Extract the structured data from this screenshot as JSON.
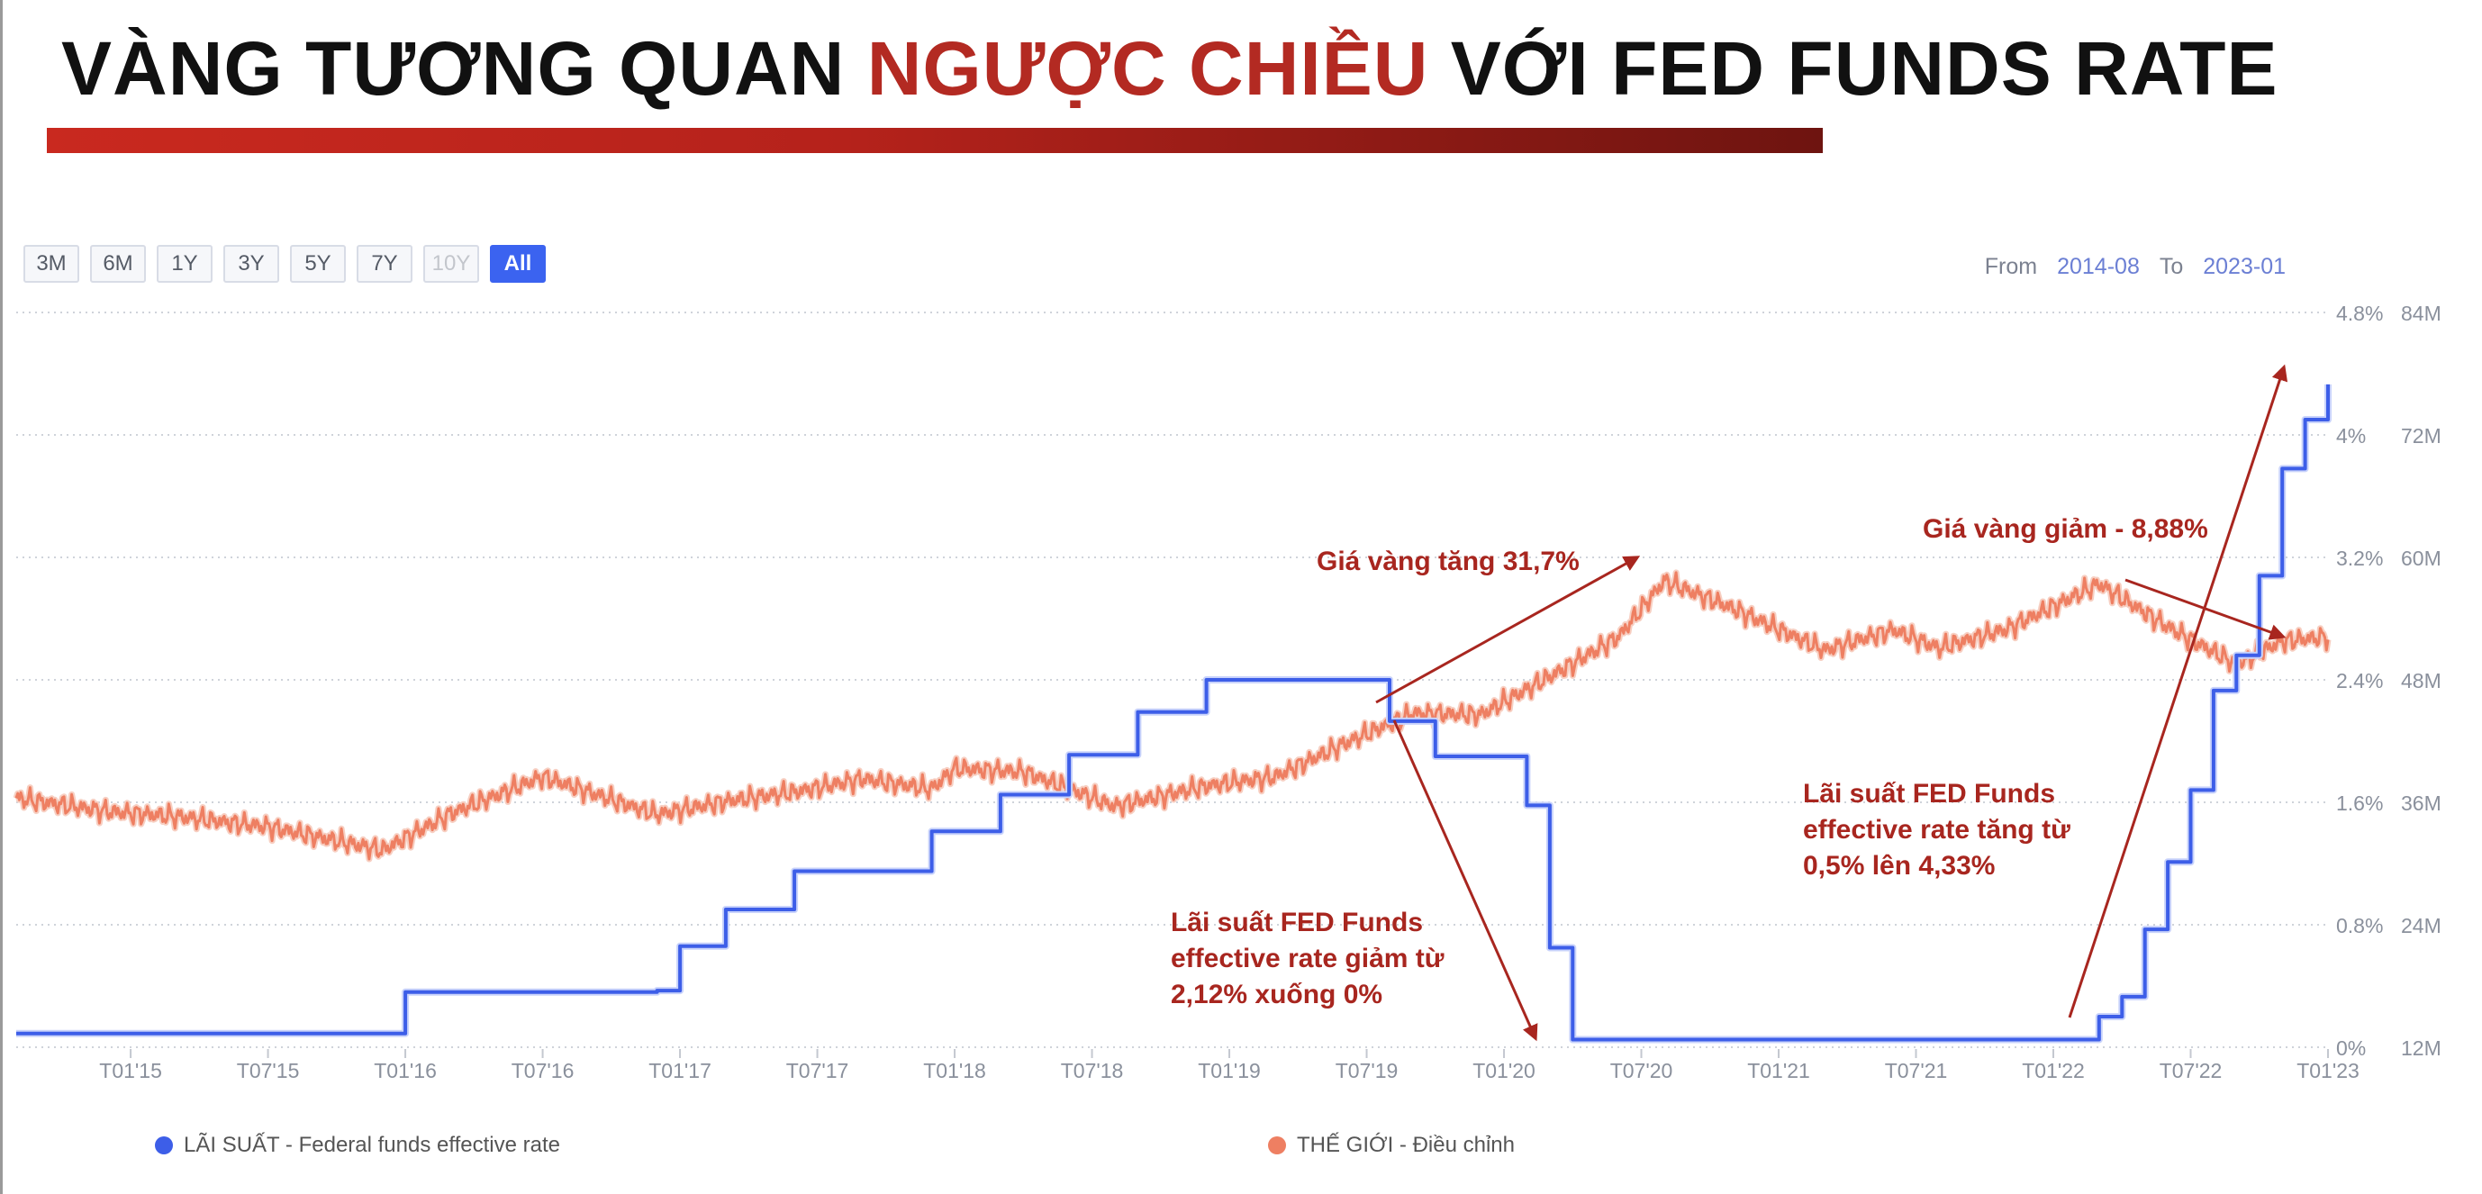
{
  "title": {
    "prefix": "VÀNG TƯƠNG QUAN ",
    "highlight": "NGƯỢC CHIỀU",
    "suffix": " VỚI FED FUNDS RATE"
  },
  "range_buttons": [
    {
      "label": "3M",
      "state": "normal"
    },
    {
      "label": "6M",
      "state": "normal"
    },
    {
      "label": "1Y",
      "state": "normal"
    },
    {
      "label": "3Y",
      "state": "normal"
    },
    {
      "label": "5Y",
      "state": "normal"
    },
    {
      "label": "7Y",
      "state": "normal"
    },
    {
      "label": "10Y",
      "state": "disabled"
    },
    {
      "label": "All",
      "state": "active"
    }
  ],
  "date_range": {
    "from_label": "From",
    "from_value": "2014-08",
    "to_label": "To",
    "to_value": "2023-01"
  },
  "annotations": {
    "gold_up": "Giá vàng tăng 31,7%",
    "gold_down": "Giá vàng giảm - 8,88%",
    "rate_down": [
      "Lãi suất FED Funds",
      "effective rate giảm từ",
      "2,12% xuống 0%"
    ],
    "rate_up": [
      "Lãi suất FED Funds",
      "effective rate tăng từ",
      "0,5% lên 4,33%"
    ]
  },
  "legend": {
    "rate": "LÃI SUẤT - Federal funds effective rate",
    "gold": "THẾ GIỚI - Điều chỉnh"
  },
  "colors": {
    "rate": "#3d5ee8",
    "gold": "#ee7f62",
    "annotation": "#a8261f",
    "title_accent": "#b32a22"
  },
  "chart_data": {
    "type": "line",
    "x_ticks": [
      "T01'15",
      "T07'15",
      "T01'16",
      "T07'16",
      "T01'17",
      "T07'17",
      "T01'18",
      "T07'18",
      "T01'19",
      "T07'19",
      "T01'20",
      "T07'20",
      "T01'21",
      "T07'21",
      "T01'22",
      "T07'22",
      "T01'23"
    ],
    "y_left_ticks": [
      "0%",
      "0.8%",
      "1.6%",
      "2.4%",
      "3.2%",
      "4%",
      "4.8%"
    ],
    "y_left_range": [
      0,
      4.8
    ],
    "y_right_ticks": [
      "12M",
      "24M",
      "36M",
      "48M",
      "60M",
      "72M",
      "84M"
    ],
    "y_right_range": [
      12,
      84
    ],
    "grid": true,
    "series": [
      {
        "name": "LÃI SUẤT - Federal funds effective rate",
        "axis": "left",
        "x": [
          "2014-08",
          "2015-12",
          "2016-01",
          "2016-12",
          "2017-01",
          "2017-03",
          "2017-06",
          "2017-12",
          "2018-03",
          "2018-06",
          "2018-09",
          "2018-12",
          "2019-07",
          "2019-08",
          "2019-10",
          "2020-02",
          "2020-03",
          "2020-04",
          "2022-03",
          "2022-04",
          "2022-05",
          "2022-06",
          "2022-07",
          "2022-08",
          "2022-09",
          "2022-10",
          "2022-11",
          "2022-12",
          "2023-01"
        ],
        "values": [
          0.09,
          0.09,
          0.36,
          0.37,
          0.66,
          0.9,
          1.15,
          1.41,
          1.65,
          1.91,
          2.19,
          2.4,
          2.4,
          2.13,
          1.9,
          1.58,
          0.65,
          0.05,
          0.2,
          0.33,
          0.77,
          1.21,
          1.68,
          2.33,
          2.56,
          3.08,
          3.78,
          4.1,
          4.33
        ]
      },
      {
        "name": "THẾ GIỚI - Điều chỉnh",
        "axis": "right",
        "x": [
          "2014-08",
          "2014-12",
          "2015-03",
          "2015-07",
          "2015-12",
          "2016-03",
          "2016-07",
          "2016-12",
          "2017-03",
          "2017-06",
          "2017-09",
          "2017-12",
          "2018-01",
          "2018-04",
          "2018-08",
          "2018-12",
          "2019-03",
          "2019-06",
          "2019-09",
          "2019-12",
          "2020-03",
          "2020-06",
          "2020-08",
          "2020-11",
          "2021-03",
          "2021-06",
          "2021-08",
          "2021-11",
          "2022-03",
          "2022-06",
          "2022-09",
          "2022-11",
          "2023-01"
        ],
        "values": [
          36.4,
          35.1,
          34.6,
          33.6,
          31.3,
          34.9,
          38.5,
          34.8,
          36.1,
          37.0,
          38.3,
          37.3,
          39.3,
          39.0,
          35.6,
          37.6,
          38.5,
          41.7,
          44.7,
          44.6,
          48.3,
          52.2,
          57.7,
          55.0,
          50.9,
          52.9,
          51.1,
          53.0,
          57.4,
          53.2,
          49.5,
          51.8,
          52.2
        ]
      }
    ]
  }
}
